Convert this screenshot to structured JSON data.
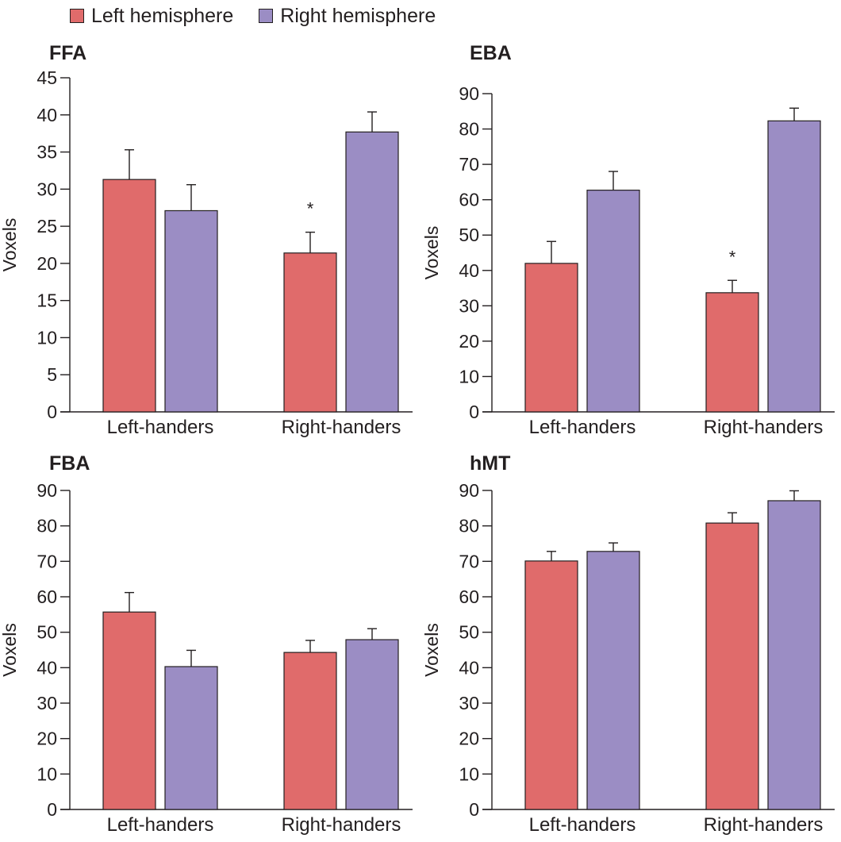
{
  "legend": {
    "items": [
      {
        "label": "Left hemisphere",
        "color": "#e06b6b"
      },
      {
        "label": "Right hemisphere",
        "color": "#9b8dc4"
      }
    ]
  },
  "chart_data": [
    {
      "type": "bar",
      "title": "FFA",
      "ylabel": "Voxels",
      "ylim": [
        0,
        45
      ],
      "yticks": [
        0,
        5,
        10,
        15,
        20,
        25,
        30,
        35,
        40,
        45
      ],
      "categories": [
        "Left-handers",
        "Right-handers"
      ],
      "series": [
        {
          "name": "Left hemisphere",
          "values": [
            31.3,
            21.4
          ],
          "errors": [
            4.0,
            2.8
          ]
        },
        {
          "name": "Right hemisphere",
          "values": [
            27.1,
            37.7
          ],
          "errors": [
            3.5,
            2.7
          ]
        }
      ],
      "annotations": [
        {
          "category": "Right-handers",
          "series": "Left hemisphere",
          "text": "*"
        }
      ]
    },
    {
      "type": "bar",
      "title": "EBA",
      "ylabel": "Voxels",
      "ylim": [
        0,
        90
      ],
      "yticks": [
        0,
        10,
        20,
        30,
        40,
        50,
        60,
        70,
        80,
        90
      ],
      "categories": [
        "Left-handers",
        "Right-handers"
      ],
      "series": [
        {
          "name": "Left hemisphere",
          "values": [
            42,
            33.7
          ],
          "errors": [
            6.2,
            3.5
          ]
        },
        {
          "name": "Right hemisphere",
          "values": [
            62.7,
            82.3
          ],
          "errors": [
            5.3,
            3.6
          ]
        }
      ],
      "annotations": [
        {
          "category": "Right-handers",
          "series": "Left hemisphere",
          "text": "*"
        }
      ]
    },
    {
      "type": "bar",
      "title": "FBA",
      "ylabel": "Voxels",
      "ylim": [
        0,
        90
      ],
      "yticks": [
        0,
        10,
        20,
        30,
        40,
        50,
        60,
        70,
        80,
        90
      ],
      "categories": [
        "Left-handers",
        "Right-handers"
      ],
      "series": [
        {
          "name": "Left hemisphere",
          "values": [
            55.7,
            44.3
          ],
          "errors": [
            5.5,
            3.4
          ]
        },
        {
          "name": "Right hemisphere",
          "values": [
            40.3,
            47.9
          ],
          "errors": [
            4.6,
            3.1
          ]
        }
      ],
      "annotations": []
    },
    {
      "type": "bar",
      "title": "hMT",
      "ylabel": "Voxels",
      "ylim": [
        0,
        90
      ],
      "yticks": [
        0,
        10,
        20,
        30,
        40,
        50,
        60,
        70,
        80,
        90
      ],
      "categories": [
        "Left-handers",
        "Right-handers"
      ],
      "series": [
        {
          "name": "Left hemisphere",
          "values": [
            70.1,
            80.8
          ],
          "errors": [
            2.7,
            2.9
          ]
        },
        {
          "name": "Right hemisphere",
          "values": [
            72.8,
            87.1
          ],
          "errors": [
            2.4,
            2.8
          ]
        }
      ],
      "annotations": []
    }
  ]
}
